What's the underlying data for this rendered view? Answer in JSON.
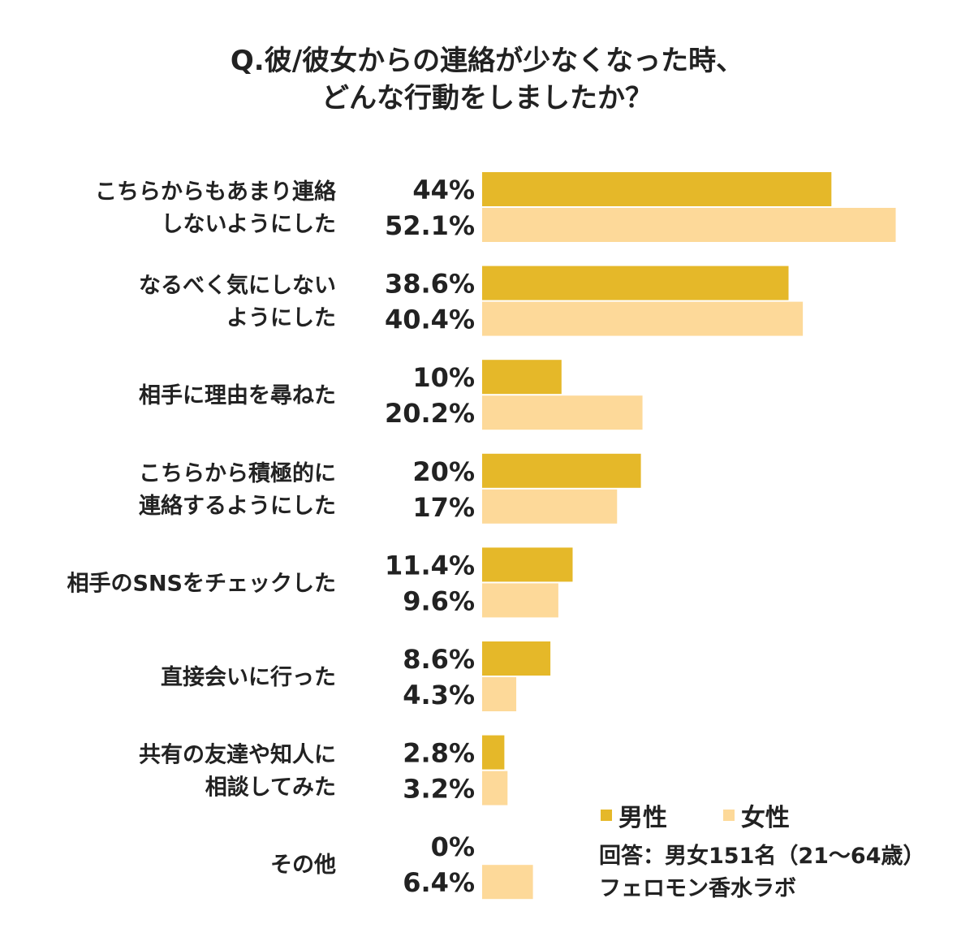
{
  "chart_data": {
    "type": "bar",
    "orientation": "horizontal",
    "title": [
      "Q.彼/彼女からの連絡が少なくなった時、",
      "どんな行動をしましたか？"
    ],
    "categories": [
      [
        "こちらからもあまり連絡",
        "しないようにした"
      ],
      [
        "なるべく気にしない",
        "ようにした"
      ],
      [
        "相手に理由を尋ねた"
      ],
      [
        "こちらから積極的に",
        "連絡するようにした"
      ],
      [
        "相手のSNSをチェックした"
      ],
      [
        "直接会いに行った"
      ],
      [
        "共有の友達や知人に",
        "相談してみた"
      ],
      [
        "その他"
      ]
    ],
    "series": [
      {
        "name": "男性",
        "color": "#E5B829",
        "values": [
          44,
          38.6,
          10,
          20,
          11.4,
          8.6,
          2.8,
          0
        ],
        "labels": [
          "44%",
          "38.6%",
          "10%",
          "20%",
          "11.4%",
          "8.6%",
          "2.8%",
          "0%"
        ]
      },
      {
        "name": "女性",
        "color": "#FDD999",
        "values": [
          52.1,
          40.4,
          20.2,
          17,
          9.6,
          4.3,
          3.2,
          6.4
        ],
        "labels": [
          "52.1%",
          "40.4%",
          "20.2%",
          "17%",
          "9.6%",
          "4.3%",
          "3.2%",
          "6.4%"
        ]
      }
    ],
    "unit": "%",
    "grid": false,
    "legend": "bottom-right"
  },
  "notes": [
    "回答：男女151名（21～64歳）",
    "フェロモン香水ラボ"
  ]
}
